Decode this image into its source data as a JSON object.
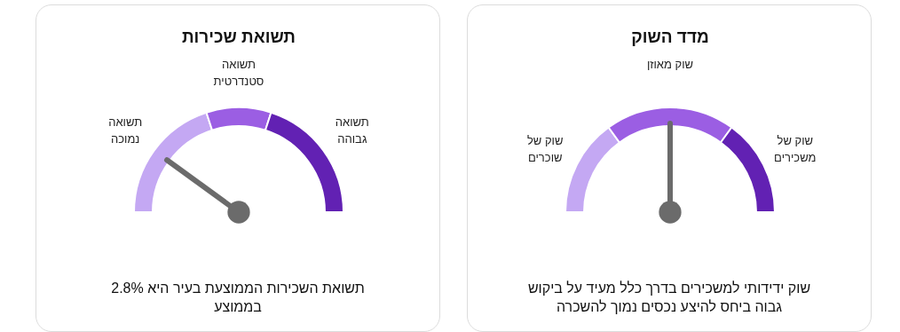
{
  "chart_data": [
    {
      "type": "donut",
      "title": "מדד השוק",
      "categories": [
        "שוק של שוכרים",
        "שוק מאוזן",
        "שוק של משכירים"
      ],
      "values": [
        30,
        40,
        30
      ],
      "colors": [
        "#c4a8f3",
        "#9b5ee3",
        "#6221b3"
      ],
      "needle": "שוק מאוזן",
      "annotations": [
        "שוק ידידותי למשכירים בדרך כלל מעיד על ביקוש גבוה ביחס להיצע נכסים נמוך להשכרה"
      ]
    },
    {
      "type": "donut",
      "title": "תשואת שכירות",
      "categories": [
        "תשואה נמוכה",
        "תשואה סטנדרטית",
        "תשואה גבוהה"
      ],
      "values": [
        40,
        20,
        40
      ],
      "colors": [
        "#c4a8f3",
        "#9b5ee3",
        "#6221b3"
      ],
      "needle": "תשואה נמוכה",
      "annotations": [
        "תשואת השכירות הממוצעת בעיר היא 2.8% בממוצע"
      ]
    }
  ]
}
